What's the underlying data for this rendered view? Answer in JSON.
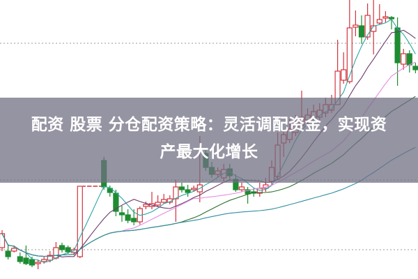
{
  "title": "配资 股票 分仓配资策略：灵活调配资金，实现资产最大化增长",
  "title_lines": [
    "配资 股票 分仓配资策略：灵活调配资金，实现资",
    "产最大化增长"
  ],
  "chart_data": {
    "type": "candlestick",
    "ylim": [
      0,
      100
    ],
    "grid_levels": [
      84.5,
      35.5,
      10.5
    ],
    "grid": "dotted horizontal",
    "colors": {
      "up": "#d2323c",
      "down": "#1e8c32",
      "limit_dash": "#d2323c"
    },
    "moving_averages": [
      {
        "period": 5,
        "color": "#2aa5a5"
      },
      {
        "period": 10,
        "color": "#6a3a6a"
      },
      {
        "period": 20,
        "color": "#e58be0"
      },
      {
        "period": 30,
        "color": "#2c6e2c"
      },
      {
        "period": 60,
        "color": "#2f8fa0"
      }
    ],
    "ohlc": [
      [
        11.25,
        17.5,
        10,
        16.25
      ],
      [
        10,
        12.5,
        7,
        8
      ],
      [
        10,
        12,
        9.5,
        11
      ],
      [
        8,
        9.5,
        5.5,
        6.25
      ],
      [
        7.5,
        12,
        5,
        5.5
      ],
      [
        7,
        8,
        4.25,
        5
      ],
      [
        5.5,
        7,
        3.5,
        6
      ],
      [
        6.25,
        8,
        5.5,
        7
      ],
      [
        6.75,
        10,
        6,
        8.5
      ],
      [
        7.5,
        13.25,
        7,
        11.25
      ],
      [
        12,
        13,
        9.5,
        10.5
      ],
      [
        11.25,
        12,
        9,
        9.75
      ],
      [
        9.5,
        11.25,
        8.5,
        10.5
      ],
      [
        8,
        33.25,
        7.5,
        33.25
      ],
      [
        33.25,
        33.25,
        33.25,
        33.25
      ],
      [
        33.25,
        33.25,
        33.25,
        33.25
      ],
      [
        33.25,
        33.25,
        33.25,
        33.25
      ],
      [
        42.5,
        43.75,
        32,
        33
      ],
      [
        32.5,
        33.5,
        29.5,
        31
      ],
      [
        30.75,
        32,
        22.5,
        24.25
      ],
      [
        23.75,
        26.25,
        20.5,
        23
      ],
      [
        23,
        25,
        20,
        21
      ],
      [
        21.75,
        25,
        19.25,
        20.5
      ],
      [
        20.5,
        26,
        19.5,
        25.25
      ],
      [
        26,
        27.75,
        25,
        26.75
      ],
      [
        26,
        31.25,
        25,
        27
      ],
      [
        26.5,
        30,
        26,
        27.5
      ],
      [
        27.5,
        30.5,
        27,
        28.5
      ],
      [
        27.5,
        30,
        26.75,
        28.75
      ],
      [
        28.75,
        35.5,
        20.5,
        33
      ],
      [
        33,
        34.5,
        31,
        32
      ],
      [
        32,
        33.75,
        29.5,
        31
      ],
      [
        32,
        33.5,
        31.25,
        32.5
      ],
      [
        31.25,
        51.25,
        27.5,
        33.75
      ],
      [
        45,
        46.25,
        38.75,
        40
      ],
      [
        40,
        42,
        36.25,
        37.5
      ],
      [
        37.5,
        40,
        36.25,
        38.75
      ],
      [
        36.25,
        41.25,
        35,
        39.25
      ],
      [
        39.5,
        41.25,
        35.5,
        37
      ],
      [
        35.75,
        37.5,
        31.25,
        32
      ],
      [
        32,
        34.5,
        31.25,
        33
      ],
      [
        32,
        33,
        27,
        30.5
      ],
      [
        31.25,
        32.5,
        29.5,
        30.75
      ],
      [
        30.75,
        34.5,
        29.5,
        32.5
      ],
      [
        32.5,
        36.25,
        31.25,
        33.75
      ],
      [
        35,
        42.5,
        33.75,
        40
      ],
      [
        36.75,
        52.5,
        35.5,
        48
      ],
      [
        48.75,
        53.75,
        43.75,
        51.75
      ],
      [
        50,
        57.5,
        48.75,
        53.75
      ],
      [
        52.5,
        58.75,
        51.25,
        55.5
      ],
      [
        55,
        67.5,
        53.75,
        58
      ],
      [
        57,
        61.25,
        55.5,
        58.75
      ],
      [
        57.5,
        62.5,
        56.25,
        60
      ],
      [
        58,
        63,
        57,
        60.5
      ],
      [
        59.5,
        65,
        58,
        62.5
      ],
      [
        60.5,
        66,
        59.5,
        62.5
      ],
      [
        62.5,
        85.75,
        62.5,
        74.5
      ],
      [
        71.25,
        81.25,
        70,
        75
      ],
      [
        70.75,
        100,
        70,
        90
      ],
      [
        90.25,
        96.25,
        87,
        91
      ],
      [
        90.75,
        94.5,
        84.25,
        86.75
      ],
      [
        86.75,
        98.75,
        85.75,
        94.5
      ],
      [
        88.75,
        100,
        80.5,
        90.75
      ],
      [
        91.75,
        98.5,
        91.25,
        93
      ],
      [
        93.5,
        96,
        92,
        94
      ],
      [
        93.75,
        94.25,
        89.5,
        93.25
      ],
      [
        90,
        93.75,
        69.25,
        77.5
      ],
      [
        77,
        82.5,
        75,
        80.75
      ],
      [
        80.75,
        82,
        74,
        76.75
      ],
      [
        76.25,
        77.5,
        73.75,
        75
      ]
    ]
  }
}
